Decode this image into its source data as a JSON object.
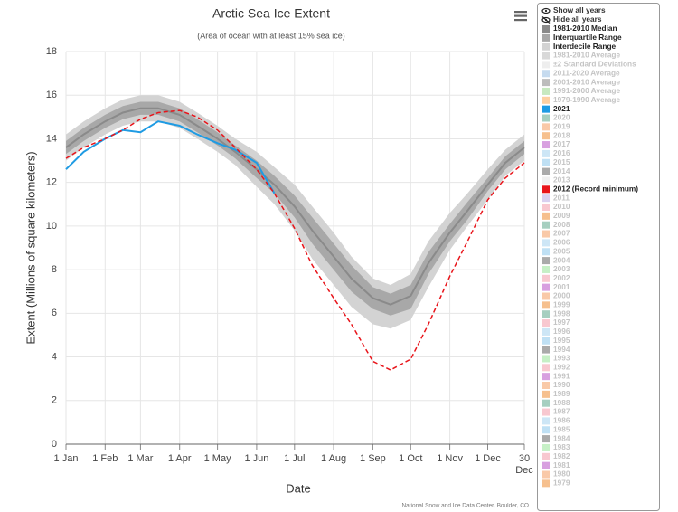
{
  "chart_data": {
    "type": "line",
    "title": "Arctic Sea Ice Extent",
    "subtitle": "(Area of ocean with at least 15% sea ice)",
    "x_label": "Date",
    "y_label": "Extent (Millions of square kilometers)",
    "credit": "National Snow and Ice Data Center, Boulder, CO",
    "show_all": "Show all years",
    "hide_all": "Hide all years",
    "grid": true,
    "xlim": [
      1,
      364
    ],
    "xticks": [
      {
        "value": 1,
        "label": "1 Jan"
      },
      {
        "value": 32,
        "label": "1 Feb"
      },
      {
        "value": 60,
        "label": "1 Mar"
      },
      {
        "value": 91,
        "label": "1 Apr"
      },
      {
        "value": 121,
        "label": "1 May"
      },
      {
        "value": 152,
        "label": "1 Jun"
      },
      {
        "value": 182,
        "label": "1 Jul"
      },
      {
        "value": 213,
        "label": "1 Aug"
      },
      {
        "value": 244,
        "label": "1 Sep"
      },
      {
        "value": 274,
        "label": "1 Oct"
      },
      {
        "value": 305,
        "label": "1 Nov"
      },
      {
        "value": 335,
        "label": "1 Dec"
      },
      {
        "value": 364,
        "label": "30 Dec"
      }
    ],
    "ylim": [
      0,
      18
    ],
    "yticks": [
      0,
      2,
      4,
      6,
      8,
      10,
      12,
      14,
      16,
      18
    ],
    "x": [
      1,
      15,
      32,
      46,
      60,
      74,
      91,
      105,
      121,
      135,
      152,
      166,
      182,
      196,
      213,
      227,
      244,
      258,
      274,
      288,
      305,
      319,
      335,
      349,
      364
    ],
    "series": [
      {
        "name": "1981-2010 Median",
        "color": "#8a8a8a",
        "visible": true,
        "values": [
          13.6,
          14.2,
          14.8,
          15.2,
          15.4,
          15.4,
          15.1,
          14.6,
          14.0,
          13.4,
          12.6,
          11.9,
          10.9,
          9.8,
          8.6,
          7.6,
          6.7,
          6.4,
          6.8,
          8.3,
          9.7,
          10.7,
          11.9,
          12.9,
          13.6
        ]
      },
      {
        "name": "Interquartile Range",
        "color": "#a8a8a8",
        "visible": true,
        "lower": [
          13.3,
          13.9,
          14.5,
          14.9,
          15.1,
          15.1,
          14.8,
          14.3,
          13.7,
          13.1,
          12.2,
          11.5,
          10.4,
          9.2,
          8.0,
          7.0,
          6.2,
          5.9,
          6.2,
          7.8,
          9.3,
          10.3,
          11.6,
          12.6,
          13.3
        ],
        "upper": [
          13.9,
          14.5,
          15.1,
          15.5,
          15.7,
          15.7,
          15.4,
          14.9,
          14.3,
          13.7,
          13.0,
          12.3,
          11.4,
          10.4,
          9.2,
          8.2,
          7.2,
          6.9,
          7.3,
          8.8,
          10.1,
          11.1,
          12.2,
          13.2,
          13.9
        ]
      },
      {
        "name": "Interdecile Range",
        "color": "#d3d3d3",
        "visible": true,
        "lower": [
          13.0,
          13.6,
          14.2,
          14.6,
          14.8,
          14.8,
          14.5,
          14.0,
          13.4,
          12.8,
          11.8,
          11.0,
          9.8,
          8.5,
          7.3,
          6.3,
          5.5,
          5.3,
          5.7,
          7.2,
          8.9,
          10.0,
          11.2,
          12.3,
          13.0
        ],
        "upper": [
          14.2,
          14.8,
          15.4,
          15.8,
          16.0,
          16.0,
          15.7,
          15.2,
          14.6,
          14.0,
          13.4,
          12.7,
          11.9,
          10.9,
          9.7,
          8.6,
          7.6,
          7.3,
          7.8,
          9.3,
          10.6,
          11.5,
          12.6,
          13.5,
          14.2
        ]
      },
      {
        "name": "1981-2010 Average",
        "color": "#d9d9d9",
        "visible": false
      },
      {
        "name": "±2 Standard Deviations",
        "color": "#eeeeee",
        "visible": false
      },
      {
        "name": "2011-2020 Average",
        "color": "#c6dbef",
        "visible": false
      },
      {
        "name": "2001-2010 Average",
        "color": "#bdbdbd",
        "visible": false
      },
      {
        "name": "1991-2000 Average",
        "color": "#c7e9c0",
        "visible": false
      },
      {
        "name": "1979-1990 Average",
        "color": "#fdd0a2",
        "visible": false
      },
      {
        "name": "2021",
        "color": "#1f9be3",
        "visible": true,
        "values": [
          12.6,
          13.4,
          14.0,
          14.4,
          14.3,
          14.8,
          14.6,
          14.2,
          13.8,
          13.5,
          12.9,
          11.5,
          null,
          null,
          null,
          null,
          null,
          null,
          null,
          null,
          null,
          null,
          null,
          null,
          null
        ]
      },
      {
        "name": "2020",
        "color": "#a6cfc0",
        "visible": false
      },
      {
        "name": "2019",
        "color": "#f9c9a8",
        "visible": false
      },
      {
        "name": "2018",
        "color": "#f6c08e",
        "visible": false
      },
      {
        "name": "2017",
        "color": "#d8a0e0",
        "visible": false
      },
      {
        "name": "2016",
        "color": "#cde6f6",
        "visible": false
      },
      {
        "name": "2015",
        "color": "#bfe0f4",
        "visible": false
      },
      {
        "name": "2014",
        "color": "#aaaaaa",
        "visible": false
      },
      {
        "name": "2013",
        "color": "#f0f0f0",
        "visible": false
      },
      {
        "name": "2012 (Record minimum)",
        "color": "#e8141a",
        "visible": true,
        "dash": true,
        "values": [
          13.1,
          13.6,
          14.0,
          14.4,
          14.9,
          15.2,
          15.3,
          15.0,
          14.4,
          13.6,
          12.6,
          11.5,
          9.9,
          8.2,
          6.7,
          5.5,
          3.8,
          3.4,
          3.9,
          5.5,
          7.7,
          9.3,
          11.2,
          12.2,
          12.9
        ]
      },
      {
        "name": "2011",
        "color": "#d9d0f0",
        "visible": false
      },
      {
        "name": "2010",
        "color": "#f8c8d0",
        "visible": false
      },
      {
        "name": "2009",
        "color": "#f6c08e",
        "visible": false
      },
      {
        "name": "2008",
        "color": "#a6cfc0",
        "visible": false
      },
      {
        "name": "2007",
        "color": "#f9c9a8",
        "visible": false
      },
      {
        "name": "2006",
        "color": "#cde6f6",
        "visible": false
      },
      {
        "name": "2005",
        "color": "#bfe0f4",
        "visible": false
      },
      {
        "name": "2004",
        "color": "#aaaaaa",
        "visible": false
      },
      {
        "name": "2003",
        "color": "#c6f0c6",
        "visible": false
      },
      {
        "name": "2002",
        "color": "#f8c8d0",
        "visible": false
      },
      {
        "name": "2001",
        "color": "#d8a0e0",
        "visible": false
      },
      {
        "name": "2000",
        "color": "#f9c9a8",
        "visible": false
      },
      {
        "name": "1999",
        "color": "#f6c08e",
        "visible": false
      },
      {
        "name": "1998",
        "color": "#a6cfc0",
        "visible": false
      },
      {
        "name": "1997",
        "color": "#f8c8d0",
        "visible": false
      },
      {
        "name": "1996",
        "color": "#cde6f6",
        "visible": false
      },
      {
        "name": "1995",
        "color": "#bfe0f4",
        "visible": false
      },
      {
        "name": "1994",
        "color": "#aaaaaa",
        "visible": false
      },
      {
        "name": "1993",
        "color": "#c6f0c6",
        "visible": false
      },
      {
        "name": "1992",
        "color": "#f8c8d0",
        "visible": false
      },
      {
        "name": "1991",
        "color": "#d8a0e0",
        "visible": false
      },
      {
        "name": "1990",
        "color": "#f9c9a8",
        "visible": false
      },
      {
        "name": "1989",
        "color": "#f6c08e",
        "visible": false
      },
      {
        "name": "1988",
        "color": "#a6cfc0",
        "visible": false
      },
      {
        "name": "1987",
        "color": "#f8c8d0",
        "visible": false
      },
      {
        "name": "1986",
        "color": "#cde6f6",
        "visible": false
      },
      {
        "name": "1985",
        "color": "#bfe0f4",
        "visible": false
      },
      {
        "name": "1984",
        "color": "#aaaaaa",
        "visible": false
      },
      {
        "name": "1983",
        "color": "#c6f0c6",
        "visible": false
      },
      {
        "name": "1982",
        "color": "#f8c8d0",
        "visible": false
      },
      {
        "name": "1981",
        "color": "#d8a0e0",
        "visible": false
      },
      {
        "name": "1980",
        "color": "#f9c9a8",
        "visible": false
      },
      {
        "name": "1979",
        "color": "#f6c08e",
        "visible": false
      }
    ]
  }
}
